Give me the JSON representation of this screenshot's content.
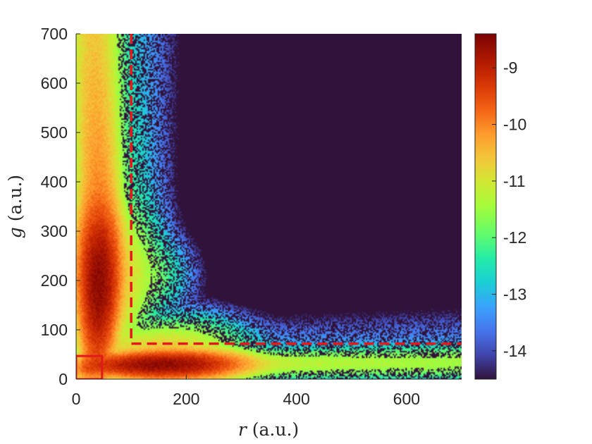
{
  "chart_data": {
    "type": "heatmap",
    "title": "",
    "xlabel": {
      "var": "r",
      "unit": "(a.u.)"
    },
    "ylabel": {
      "var": "g",
      "unit": "(a.u.)"
    },
    "xlim": [
      0,
      700
    ],
    "ylim": [
      0,
      700
    ],
    "x_ticks": [
      "0",
      "200",
      "400",
      "600"
    ],
    "x_tick_values": [
      0,
      200,
      400,
      600
    ],
    "y_ticks": [
      "0",
      "100",
      "200",
      "300",
      "400",
      "500",
      "600",
      "700"
    ],
    "y_tick_values": [
      0,
      100,
      200,
      300,
      400,
      500,
      600,
      700
    ],
    "background_color": "#30123b",
    "colormap": "turbo",
    "colorbar": {
      "range": [
        -14.5,
        -8.4
      ],
      "ticks": [
        "-9",
        "-10",
        "-11",
        "-12",
        "-13",
        "-14"
      ],
      "tick_values": [
        -9,
        -10,
        -11,
        -12,
        -13,
        -14
      ]
    },
    "density_components": [
      {
        "name": "vertical-arm",
        "peak_r": 37,
        "peak_g": 195,
        "peak_value": -8.6
      },
      {
        "name": "horizontal-arm",
        "peak_r": 155,
        "peak_g": 28,
        "peak_value": -8.6
      },
      {
        "name": "origin-cluster",
        "peak_r": 22,
        "peak_g": 22,
        "peak_value": -10.2
      }
    ],
    "annotations": [
      {
        "type": "dashed-boundary",
        "color": "#e31a1c",
        "vertical_at_r": 100,
        "horizontal_at_g": 72,
        "from_g": 700,
        "to_r": 700
      },
      {
        "type": "solid-box",
        "color": "#e31a1c",
        "r": [
          0,
          47
        ],
        "g": [
          0,
          47
        ]
      }
    ]
  }
}
